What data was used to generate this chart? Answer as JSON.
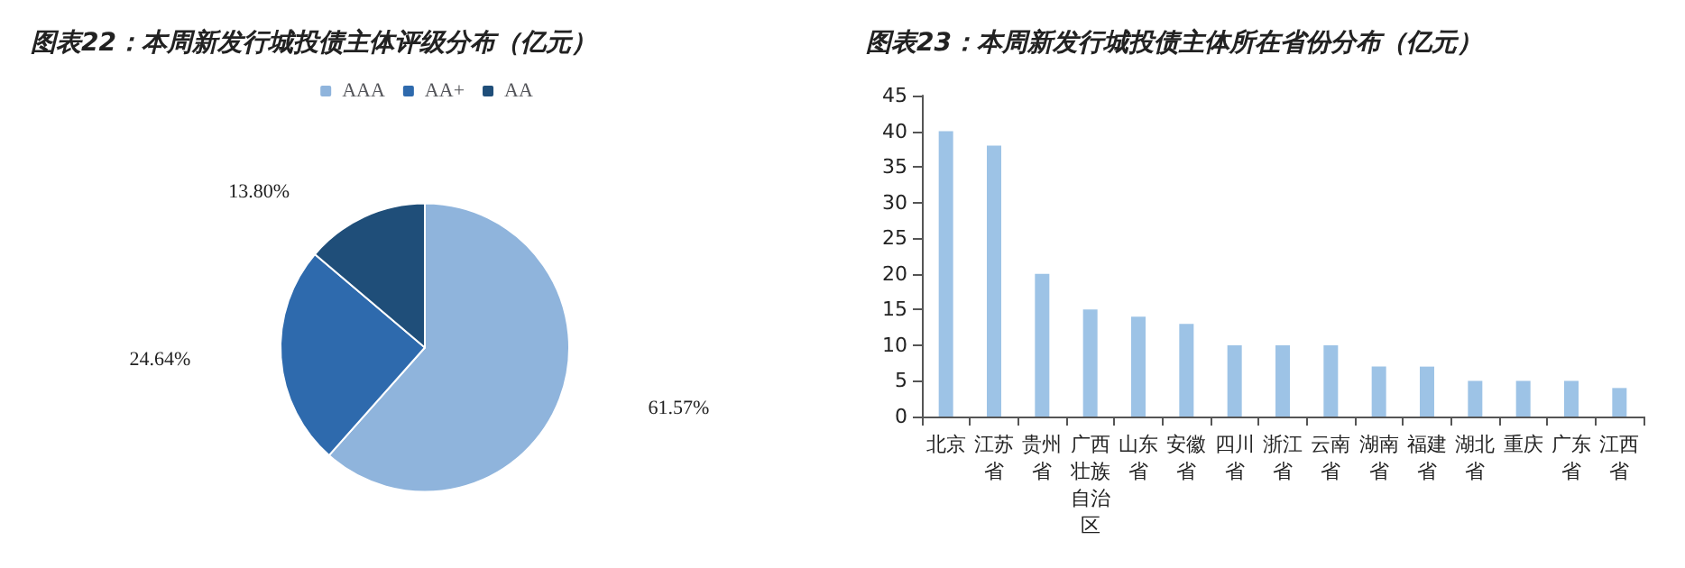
{
  "chart_data": [
    {
      "type": "pie",
      "title": "图表22：本周新发行城投债主体评级分布（亿元）",
      "categories": [
        "AAA",
        "AA+",
        "AA"
      ],
      "values": [
        61.57,
        24.64,
        13.8
      ],
      "value_labels": [
        "61.57%",
        "24.64%",
        "13.80%"
      ],
      "colors": [
        "#8fb4dc",
        "#2e6aad",
        "#1f4e79"
      ],
      "legend": "top"
    },
    {
      "type": "bar",
      "title": "图表23：本周新发行城投债主体所在省份分布（亿元）",
      "categories": [
        "北京",
        "江苏省",
        "贵州省",
        "广西壮族自治区",
        "山东省",
        "安徽省",
        "四川省",
        "浙江省",
        "云南省",
        "湖南省",
        "福建省",
        "湖北省",
        "重庆",
        "广东省",
        "江西省"
      ],
      "values": [
        40,
        38,
        20,
        15,
        14,
        13,
        10,
        10,
        10,
        7,
        7,
        5,
        5,
        5,
        4
      ],
      "color": "#9dc3e6",
      "ylim": [
        0,
        45
      ],
      "yticks": [
        0,
        5,
        10,
        15,
        20,
        25,
        30,
        35,
        40,
        45
      ],
      "grid": false
    }
  ]
}
